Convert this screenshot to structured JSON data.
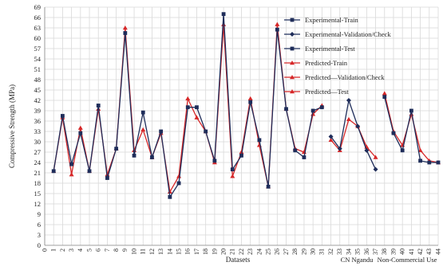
{
  "chart_data": {
    "type": "line",
    "xlabel": "Datasets",
    "ylabel": "Compressive Strength (MPa)",
    "ylim": [
      0,
      69
    ],
    "yticks": [
      0,
      3,
      6,
      9,
      12,
      15,
      18,
      21,
      24,
      27,
      30,
      33,
      36,
      39,
      42,
      45,
      48,
      51,
      54,
      57,
      60,
      63,
      66,
      69
    ],
    "xticks": [
      0,
      1,
      2,
      3,
      4,
      5,
      6,
      7,
      8,
      9,
      10,
      11,
      12,
      13,
      14,
      15,
      16,
      17,
      18,
      19,
      20,
      21,
      22,
      23,
      24,
      25,
      26,
      27,
      28,
      29,
      30,
      31,
      32,
      33,
      34,
      35,
      36,
      37,
      38,
      39,
      40,
      41,
      42,
      43,
      44
    ],
    "xlim": [
      0,
      44
    ],
    "grid": true,
    "legend_position": "top-right",
    "annotations": [
      "CN Ngandu",
      "Non-Commercial Use"
    ],
    "series": [
      {
        "name": "Experimental-Train",
        "color": "#1f2d5a",
        "marker": "square",
        "x": [
          1,
          2,
          3,
          4,
          5,
          6,
          7,
          8,
          9,
          10,
          11,
          12,
          13,
          14,
          15,
          16,
          17,
          18,
          19,
          20,
          21,
          22,
          23,
          24,
          25,
          26,
          27,
          28,
          29,
          30,
          31
        ],
        "values": [
          21.5,
          37.5,
          23.5,
          32.5,
          21.5,
          40.5,
          19.5,
          28,
          61.5,
          26,
          38.5,
          25.5,
          33,
          14,
          18,
          40,
          40,
          33,
          24.5,
          67,
          22,
          26,
          41.5,
          30.5,
          17,
          62.5,
          39.5,
          27.5,
          25.5,
          39,
          40
        ]
      },
      {
        "name": "Experimental-Validation/Check",
        "color": "#1f2d5a",
        "marker": "diamond",
        "x": [
          32,
          33,
          34,
          35,
          36,
          37
        ],
        "values": [
          31.5,
          28,
          42,
          34.5,
          27.5,
          22
        ]
      },
      {
        "name": "Experimental-Test",
        "color": "#1f2d5a",
        "marker": "square",
        "x": [
          38,
          39,
          40,
          41,
          42,
          43,
          44
        ],
        "values": [
          43,
          32.5,
          27.5,
          39,
          24.5,
          24,
          24
        ]
      },
      {
        "name": "Predicted-Train",
        "color": "#d62728",
        "marker": "triangle",
        "x": [
          1,
          2,
          3,
          4,
          5,
          6,
          7,
          8,
          9,
          10,
          11,
          12,
          13,
          14,
          15,
          16,
          17,
          18,
          19,
          20,
          21,
          22,
          23,
          24,
          25,
          26,
          27,
          28,
          29,
          30,
          31
        ],
        "values": [
          21.5,
          37,
          20.5,
          34,
          21.5,
          39.5,
          20.5,
          28,
          63,
          27.5,
          33.5,
          25.5,
          32.5,
          15.5,
          20,
          42.5,
          37,
          33,
          24,
          64,
          20,
          27,
          42.5,
          29,
          17,
          64,
          39.5,
          28,
          27,
          38,
          40.5
        ]
      },
      {
        "name": "Predicted—Validation/Check",
        "color": "#d62728",
        "marker": "triangle",
        "x": [
          32,
          33,
          34,
          35,
          36,
          37
        ],
        "values": [
          30.5,
          27.5,
          36.5,
          34.5,
          28.5,
          25.5
        ]
      },
      {
        "name": "Predicted—Test",
        "color": "#d62728",
        "marker": "triangle",
        "x": [
          38,
          39,
          40,
          41,
          42,
          43,
          44
        ],
        "values": [
          44,
          33,
          29,
          38,
          27.5,
          24.5,
          24
        ]
      }
    ]
  }
}
